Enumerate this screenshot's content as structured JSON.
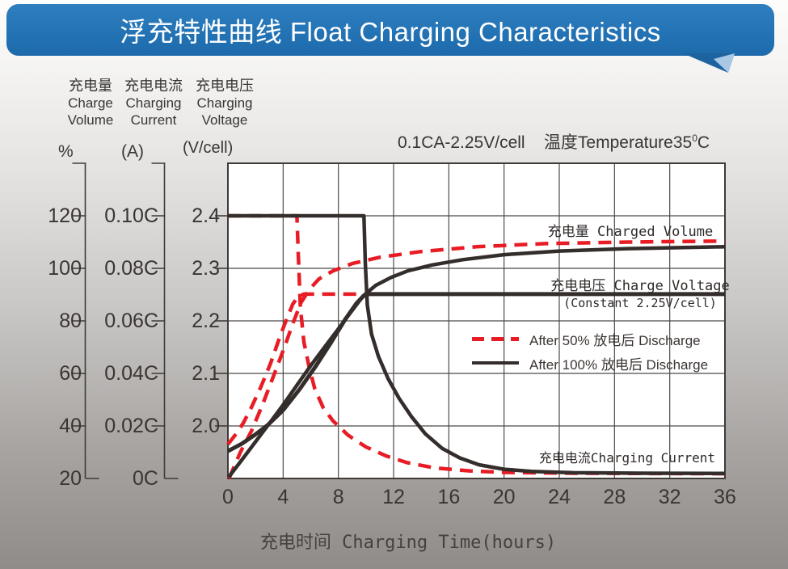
{
  "banner": {
    "title": "浮充特性曲线 Float Charging Characteristics"
  },
  "axes_headers": {
    "volume": {
      "cn": "充电量",
      "en1": "Charge",
      "en2": "Volume",
      "unit": "%"
    },
    "current": {
      "cn": "充电电流",
      "en1": "Charging",
      "en2": "Current",
      "unit": "(A)"
    },
    "voltage": {
      "cn": "充电电压",
      "en1": "Charging",
      "en2": "Voltage",
      "unit": "(V/cell)"
    }
  },
  "condition": {
    "left": "0.1CA-2.25V/cell",
    "right": "温度Temperature35",
    "degree": "0",
    "unit": "C"
  },
  "x_axis_title": "充电时间 Charging Time(hours)",
  "colors": {
    "red": "#e81c25",
    "black": "#332d2b",
    "grid": "#4e4b49",
    "border": "#3e3b39",
    "banner_blue": "#2272b4"
  },
  "chart_data": {
    "type": "line",
    "title": "浮充特性曲线 Float Charging Characteristics",
    "condition": "0.1CA-2.25V/cell  温度Temperature35°C",
    "x": {
      "label": "充电时间 Charging Time(hours)",
      "ticks": [
        0,
        4,
        8,
        12,
        16,
        20,
        24,
        28,
        32,
        36
      ],
      "range": [
        0,
        36
      ]
    },
    "y_axes": {
      "percent": {
        "name": "充电量 Charge Volume",
        "unit": "%",
        "ticks": [
          "120",
          "100",
          "80",
          "60",
          "40",
          "20"
        ],
        "range": [
          20,
          140
        ]
      },
      "current": {
        "name": "充电电流 Charging Current",
        "unit": "(A)",
        "ticks": [
          "0.10C",
          "0.08C",
          "0.06C",
          "0.04C",
          "0.02C",
          "0C"
        ],
        "range": [
          0,
          0.12
        ]
      },
      "voltage": {
        "name": "充电电压 Charging Voltage",
        "unit": "(V/cell)",
        "ticks": [
          "2.4",
          "2.3",
          "2.2",
          "2.1",
          "2.0"
        ],
        "range": [
          1.9,
          2.5
        ]
      }
    },
    "grid": true,
    "legend": [
      {
        "label": "After 50% 放电后 Discharge",
        "style": "dashed",
        "color": "#e81c25"
      },
      {
        "label": "After 100% 放电后 Discharge",
        "style": "solid",
        "color": "#332d2b"
      }
    ],
    "annotations": {
      "charged_volume": "充电量 Charged Volume",
      "charge_voltage": "充电电压 Charge Voltage",
      "constant": "(Constant 2.25V/cell)",
      "charging_current": "充电电流Charging Current"
    },
    "series": [
      {
        "name": "charging-current-after-50%-discharge",
        "axis": "current",
        "color": "#e81c25",
        "dash": true,
        "width": 4.5,
        "points": [
          [
            0,
            0.1
          ],
          [
            5.0,
            0.1
          ],
          [
            5.1,
            0.085
          ],
          [
            5.25,
            0.065
          ],
          [
            5.5,
            0.052
          ],
          [
            5.9,
            0.042
          ],
          [
            6.3,
            0.034
          ],
          [
            6.9,
            0.027
          ],
          [
            7.6,
            0.022
          ],
          [
            8.7,
            0.0165
          ],
          [
            10,
            0.012
          ],
          [
            11.5,
            0.0085
          ],
          [
            13,
            0.006
          ],
          [
            15,
            0.004
          ],
          [
            17.5,
            0.0029
          ],
          [
            20,
            0.0023
          ],
          [
            25,
            0.002
          ],
          [
            30,
            0.0019
          ],
          [
            36,
            0.0018
          ]
        ]
      },
      {
        "name": "charging-current-after-100%-discharge",
        "axis": "current",
        "color": "#332d2b",
        "dash": false,
        "width": 4.5,
        "points": [
          [
            0,
            0.1
          ],
          [
            9.85,
            0.1
          ],
          [
            9.95,
            0.082
          ],
          [
            10.1,
            0.066
          ],
          [
            10.4,
            0.055
          ],
          [
            10.9,
            0.0465
          ],
          [
            11.6,
            0.038
          ],
          [
            12.4,
            0.0305
          ],
          [
            13.3,
            0.0235
          ],
          [
            14.3,
            0.017
          ],
          [
            15.5,
            0.0115
          ],
          [
            16.8,
            0.0078
          ],
          [
            18.2,
            0.0052
          ],
          [
            20,
            0.0035
          ],
          [
            22,
            0.0027
          ],
          [
            25,
            0.0022
          ],
          [
            30,
            0.002
          ],
          [
            36,
            0.0019
          ]
        ]
      },
      {
        "name": "charged-volume-after-50%-discharge",
        "axis": "percent",
        "color": "#e81c25",
        "dash": true,
        "width": 4.5,
        "points": [
          [
            0.08,
            20
          ],
          [
            0.9,
            30
          ],
          [
            1.7,
            38
          ],
          [
            2.5,
            48
          ],
          [
            3.3,
            59
          ],
          [
            4.1,
            70
          ],
          [
            4.7,
            79
          ],
          [
            5.3,
            87
          ],
          [
            5.9,
            92
          ],
          [
            6.6,
            96
          ],
          [
            7.6,
            99
          ],
          [
            9,
            101.8
          ],
          [
            11,
            104.2
          ],
          [
            14,
            106.4
          ],
          [
            18,
            108.2
          ],
          [
            23,
            109.4
          ],
          [
            29,
            110
          ],
          [
            36,
            110.4
          ]
        ]
      },
      {
        "name": "charge-voltage-after-50%-discharge",
        "axis": "voltage",
        "color": "#e81c25",
        "dash": true,
        "width": 4.5,
        "points": [
          [
            0,
            1.965
          ],
          [
            0.6,
            1.985
          ],
          [
            1.1,
            2.005
          ],
          [
            1.7,
            2.035
          ],
          [
            2.4,
            2.075
          ],
          [
            3.1,
            2.12
          ],
          [
            3.7,
            2.165
          ],
          [
            4.2,
            2.2
          ],
          [
            4.7,
            2.232
          ],
          [
            5.1,
            2.247
          ],
          [
            5.5,
            2.251
          ],
          [
            10,
            2.251
          ]
        ]
      },
      {
        "name": "charged-volume-after-100%-discharge",
        "axis": "percent",
        "color": "#332d2b",
        "dash": false,
        "width": 4.5,
        "points": [
          [
            0.05,
            20.5
          ],
          [
            1,
            27
          ],
          [
            2,
            34
          ],
          [
            3,
            41
          ],
          [
            4,
            48
          ],
          [
            5,
            55.5
          ],
          [
            6,
            63
          ],
          [
            7,
            70
          ],
          [
            8,
            77
          ],
          [
            9,
            84
          ],
          [
            9.8,
            89.5
          ],
          [
            10.7,
            93.5
          ],
          [
            11.8,
            96.5
          ],
          [
            13,
            99
          ],
          [
            14.8,
            101.3
          ],
          [
            17,
            103.3
          ],
          [
            20,
            105.2
          ],
          [
            24,
            106.6
          ],
          [
            29,
            107.5
          ],
          [
            36,
            108.2
          ]
        ]
      },
      {
        "name": "charge-voltage-after-100%-discharge",
        "axis": "voltage",
        "color": "#332d2b",
        "dash": false,
        "width": 5,
        "points": [
          [
            0,
            1.952
          ],
          [
            1,
            1.966
          ],
          [
            2,
            1.984
          ],
          [
            2.9,
            2.002
          ],
          [
            4,
            2.03
          ],
          [
            5.2,
            2.07
          ],
          [
            6.4,
            2.115
          ],
          [
            7.5,
            2.16
          ],
          [
            8.5,
            2.203
          ],
          [
            9.3,
            2.233
          ],
          [
            9.8,
            2.247
          ],
          [
            10.2,
            2.251
          ],
          [
            36,
            2.251
          ]
        ]
      }
    ]
  }
}
